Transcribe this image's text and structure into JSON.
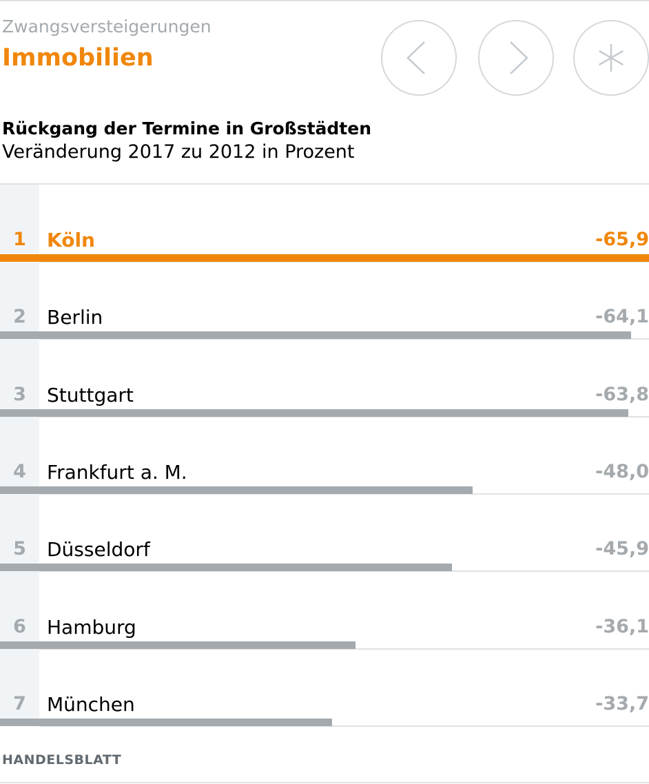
{
  "header": {
    "kicker": "Zwangsversteigerungen",
    "section": "Immobilien",
    "nav": [
      {
        "icon": "chevron-left-icon",
        "action": "prev"
      },
      {
        "icon": "chevron-right-icon",
        "action": "next"
      },
      {
        "icon": "asterisk-icon",
        "action": "menu"
      }
    ]
  },
  "chart_data": {
    "type": "bar",
    "title": "Rückgang der Termine in Großstädten",
    "subtitle": "Veränderung 2017 zu 2012 in Prozent",
    "ranks": [
      "1",
      "2",
      "3",
      "4",
      "5",
      "6",
      "7"
    ],
    "categories": [
      "Köln",
      "Berlin",
      "Stuttgart",
      "Frankfurt a. M.",
      "Düsseldorf",
      "Hamburg",
      "München"
    ],
    "values": [
      -65.9,
      -64.1,
      -63.8,
      -48.0,
      -45.9,
      -36.1,
      -33.7
    ],
    "value_labels": [
      "-65,9",
      "-64,1",
      "-63,8",
      "-48,0",
      "-45,9",
      "-36,1",
      "-33,7"
    ],
    "highlight_index": 0,
    "orientation": "horizontal",
    "xlim": [
      0,
      65.9
    ]
  },
  "colors": {
    "accent": "#f0870c",
    "bar": "#a4aaae",
    "muted_text": "#a4aaae",
    "rank_column": "#f1f4f6",
    "rule": "#dfe2e4"
  },
  "footer": {
    "source": "HANDELSBLATT"
  }
}
